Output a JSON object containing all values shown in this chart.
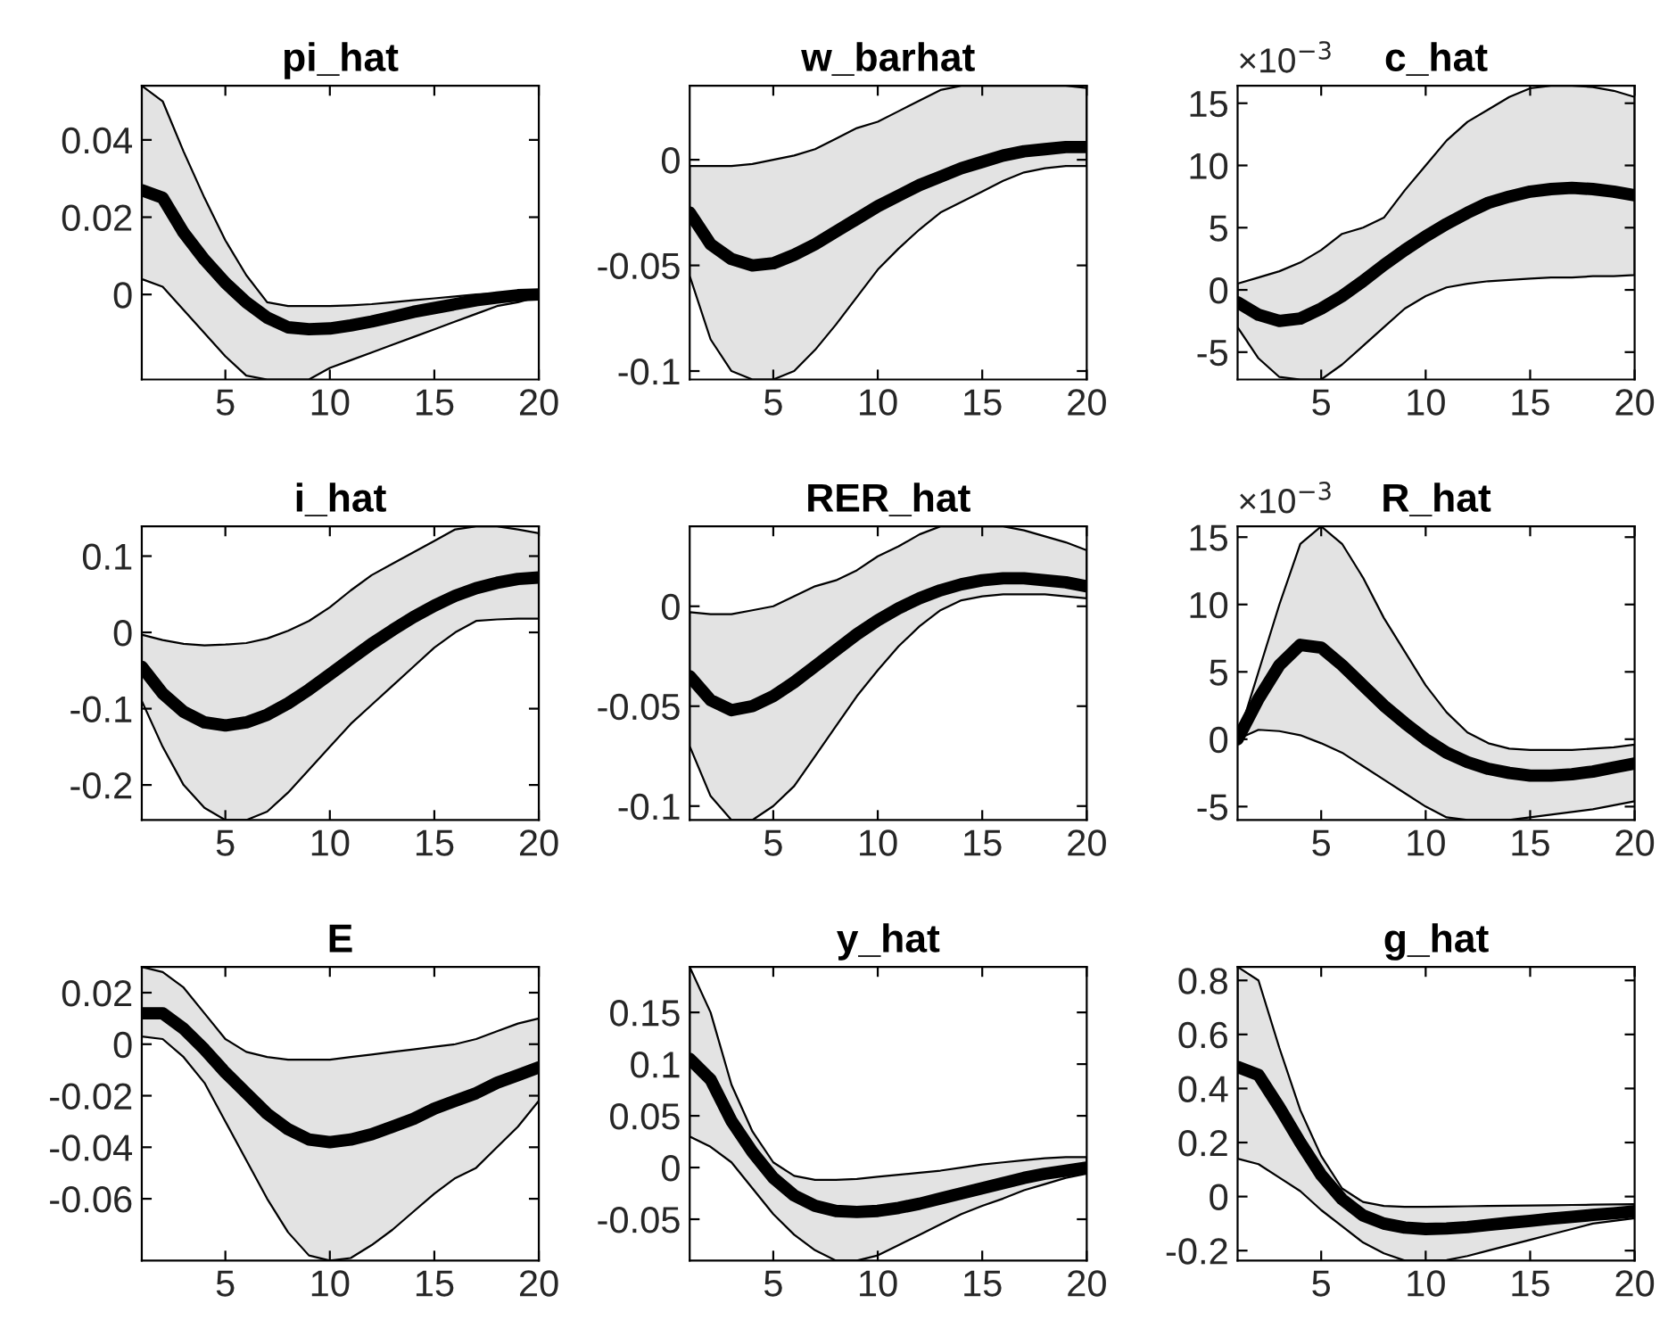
{
  "chart_data": [
    {
      "type": "line",
      "title": "pi_hat",
      "x": [
        1,
        2,
        3,
        4,
        5,
        6,
        7,
        8,
        9,
        10,
        11,
        12,
        13,
        14,
        15,
        16,
        17,
        18,
        19,
        20
      ],
      "xlim": [
        1,
        20
      ],
      "xticks": [
        5,
        10,
        15,
        20
      ],
      "ylim": [
        -0.022,
        0.054
      ],
      "yticks": [
        0,
        0.02,
        0.04
      ],
      "series": [
        {
          "color": "#000000",
          "values": [
            0.027,
            0.025,
            0.016,
            0.009,
            0.003,
            -0.002,
            -0.006,
            -0.0085,
            -0.009,
            -0.0088,
            -0.008,
            -0.007,
            -0.0058,
            -0.0045,
            -0.0035,
            -0.0025,
            -0.0015,
            -0.0008,
            -0.0002,
            0
          ],
          "upper": [
            0.054,
            0.05,
            0.037,
            0.025,
            0.014,
            0.005,
            -0.002,
            -0.003,
            -0.003,
            -0.003,
            -0.0028,
            -0.0025,
            -0.002,
            -0.0015,
            -0.001,
            -0.0005,
            0,
            0.0003,
            0.0005,
            0.0005
          ],
          "lower": [
            0.004,
            0.002,
            -0.004,
            -0.01,
            -0.016,
            -0.021,
            -0.022,
            -0.022,
            -0.022,
            -0.019,
            -0.017,
            -0.015,
            -0.013,
            -0.011,
            -0.009,
            -0.007,
            -0.005,
            -0.003,
            -0.002,
            -0.0005
          ]
        }
      ]
    },
    {
      "type": "line",
      "title": "w_barhat",
      "x": [
        1,
        2,
        3,
        4,
        5,
        6,
        7,
        8,
        9,
        10,
        11,
        12,
        13,
        14,
        15,
        16,
        17,
        18,
        19,
        20
      ],
      "xlim": [
        1,
        20
      ],
      "xticks": [
        5,
        10,
        15,
        20
      ],
      "ylim": [
        -0.104,
        0.035
      ],
      "yticks": [
        -0.1,
        -0.05,
        0
      ],
      "series": [
        {
          "color": "#000000",
          "values": [
            -0.025,
            -0.04,
            -0.047,
            -0.05,
            -0.049,
            -0.045,
            -0.04,
            -0.034,
            -0.028,
            -0.022,
            -0.017,
            -0.012,
            -0.008,
            -0.004,
            -0.001,
            0.002,
            0.004,
            0.005,
            0.006,
            0.006
          ],
          "upper": [
            -0.003,
            -0.003,
            -0.003,
            -0.002,
            0,
            0.002,
            0.005,
            0.01,
            0.015,
            0.018,
            0.023,
            0.028,
            0.033,
            0.035,
            0.035,
            0.035,
            0.035,
            0.035,
            0.035,
            0.034
          ],
          "lower": [
            -0.055,
            -0.085,
            -0.1,
            -0.104,
            -0.104,
            -0.1,
            -0.09,
            -0.078,
            -0.065,
            -0.052,
            -0.042,
            -0.033,
            -0.025,
            -0.02,
            -0.015,
            -0.01,
            -0.006,
            -0.004,
            -0.003,
            -0.003
          ]
        }
      ]
    },
    {
      "type": "line",
      "title": "c_hat",
      "annotations": [
        "×10$^{−3}$"
      ],
      "x": [
        1,
        2,
        3,
        4,
        5,
        6,
        7,
        8,
        9,
        10,
        11,
        12,
        13,
        14,
        15,
        16,
        17,
        18,
        19,
        20
      ],
      "xlim": [
        1,
        20
      ],
      "xticks": [
        5,
        10,
        15,
        20
      ],
      "ylim": [
        -7.2,
        16.4
      ],
      "yticks": [
        -5,
        0,
        5,
        10,
        15
      ],
      "series": [
        {
          "color": "#000000",
          "values": [
            -1,
            -2,
            -2.5,
            -2.3,
            -1.5,
            -0.5,
            0.7,
            2,
            3.2,
            4.3,
            5.3,
            6.2,
            7,
            7.5,
            7.9,
            8.1,
            8.2,
            8.1,
            7.9,
            7.6
          ],
          "upper": [
            0.5,
            1,
            1.5,
            2.2,
            3.2,
            4.5,
            5,
            5.8,
            8,
            10,
            12,
            13.5,
            14.5,
            15.5,
            16.2,
            16.4,
            16.4,
            16.3,
            16,
            15.5
          ],
          "lower": [
            -3,
            -5.5,
            -7,
            -7.2,
            -7.2,
            -6,
            -4.5,
            -3,
            -1.5,
            -0.5,
            0.2,
            0.5,
            0.7,
            0.8,
            0.9,
            1,
            1,
            1.1,
            1.1,
            1.2
          ]
        }
      ]
    },
    {
      "type": "line",
      "title": "i_hat",
      "x": [
        1,
        2,
        3,
        4,
        5,
        6,
        7,
        8,
        9,
        10,
        11,
        12,
        13,
        14,
        15,
        16,
        17,
        18,
        19,
        20
      ],
      "xlim": [
        1,
        20
      ],
      "xticks": [
        5,
        10,
        15,
        20
      ],
      "ylim": [
        -0.246,
        0.139
      ],
      "yticks": [
        -0.2,
        -0.1,
        0,
        0.1
      ],
      "series": [
        {
          "color": "#000000",
          "values": [
            -0.045,
            -0.08,
            -0.104,
            -0.118,
            -0.122,
            -0.118,
            -0.108,
            -0.093,
            -0.075,
            -0.055,
            -0.035,
            -0.015,
            0.003,
            0.02,
            0.035,
            0.048,
            0.058,
            0.065,
            0.07,
            0.072
          ],
          "upper": [
            -0.003,
            -0.01,
            -0.015,
            -0.017,
            -0.016,
            -0.014,
            -0.008,
            0.002,
            0.015,
            0.033,
            0.055,
            0.075,
            0.09,
            0.105,
            0.12,
            0.135,
            0.139,
            0.139,
            0.135,
            0.13
          ],
          "lower": [
            -0.09,
            -0.15,
            -0.2,
            -0.23,
            -0.246,
            -0.246,
            -0.235,
            -0.21,
            -0.18,
            -0.15,
            -0.12,
            -0.095,
            -0.07,
            -0.045,
            -0.02,
            0,
            0.015,
            0.017,
            0.018,
            0.018
          ]
        }
      ]
    },
    {
      "type": "line",
      "title": "RER_hat",
      "x": [
        1,
        2,
        3,
        4,
        5,
        6,
        7,
        8,
        9,
        10,
        11,
        12,
        13,
        14,
        15,
        16,
        17,
        18,
        19,
        20
      ],
      "xlim": [
        1,
        20
      ],
      "xticks": [
        5,
        10,
        15,
        20
      ],
      "ylim": [
        -0.107,
        0.04
      ],
      "yticks": [
        -0.1,
        -0.05,
        0
      ],
      "series": [
        {
          "color": "#000000",
          "values": [
            -0.035,
            -0.047,
            -0.052,
            -0.05,
            -0.045,
            -0.038,
            -0.03,
            -0.022,
            -0.014,
            -0.007,
            -0.001,
            0.004,
            0.008,
            0.011,
            0.013,
            0.014,
            0.014,
            0.013,
            0.012,
            0.01
          ],
          "upper": [
            -0.003,
            -0.004,
            -0.004,
            -0.002,
            0,
            0.005,
            0.01,
            0.013,
            0.018,
            0.025,
            0.03,
            0.036,
            0.04,
            0.04,
            0.04,
            0.04,
            0.038,
            0.035,
            0.032,
            0.028
          ],
          "lower": [
            -0.07,
            -0.095,
            -0.107,
            -0.107,
            -0.1,
            -0.09,
            -0.075,
            -0.06,
            -0.045,
            -0.032,
            -0.02,
            -0.01,
            -0.002,
            0.003,
            0.005,
            0.006,
            0.006,
            0.006,
            0.005,
            0.004
          ]
        }
      ]
    },
    {
      "type": "line",
      "title": "R_hat",
      "annotations": [
        "×10$^{−3}$"
      ],
      "x": [
        1,
        2,
        3,
        4,
        5,
        6,
        7,
        8,
        9,
        10,
        11,
        12,
        13,
        14,
        15,
        16,
        17,
        18,
        19,
        20
      ],
      "xlim": [
        1,
        20
      ],
      "xticks": [
        5,
        10,
        15,
        20
      ],
      "ylim": [
        -6,
        15.8
      ],
      "yticks": [
        -5,
        0,
        5,
        10,
        15
      ],
      "series": [
        {
          "color": "#000000",
          "values": [
            0,
            3,
            5.5,
            7,
            6.8,
            5.5,
            4,
            2.5,
            1.2,
            0,
            -1,
            -1.7,
            -2.2,
            -2.5,
            -2.7,
            -2.7,
            -2.6,
            -2.4,
            -2.1,
            -1.8
          ],
          "upper": [
            0,
            5,
            10,
            14.5,
            15.8,
            14.5,
            12,
            9,
            6.5,
            4,
            2,
            0.5,
            -0.3,
            -0.7,
            -0.8,
            -0.8,
            -0.8,
            -0.7,
            -0.6,
            -0.4
          ],
          "lower": [
            0,
            0.7,
            0.6,
            0.3,
            -0.3,
            -1,
            -2,
            -3,
            -4,
            -5,
            -5.8,
            -6,
            -6,
            -6,
            -5.8,
            -5.6,
            -5.4,
            -5.2,
            -4.9,
            -4.6
          ]
        }
      ]
    },
    {
      "type": "line",
      "title": "E",
      "x": [
        1,
        2,
        3,
        4,
        5,
        6,
        7,
        8,
        9,
        10,
        11,
        12,
        13,
        14,
        15,
        16,
        17,
        18,
        19,
        20
      ],
      "xlim": [
        1,
        20
      ],
      "xticks": [
        5,
        10,
        15,
        20
      ],
      "ylim": [
        -0.084,
        0.03
      ],
      "yticks": [
        -0.06,
        -0.04,
        -0.02,
        0,
        0.02
      ],
      "series": [
        {
          "color": "#000000",
          "values": [
            0.012,
            0.012,
            0.006,
            -0.002,
            -0.011,
            -0.019,
            -0.027,
            -0.033,
            -0.037,
            -0.038,
            -0.037,
            -0.035,
            -0.032,
            -0.029,
            -0.025,
            -0.022,
            -0.019,
            -0.015,
            -0.012,
            -0.009
          ],
          "upper": [
            0.03,
            0.028,
            0.022,
            0.012,
            0.002,
            -0.003,
            -0.005,
            -0.006,
            -0.006,
            -0.006,
            -0.005,
            -0.004,
            -0.003,
            -0.002,
            -0.001,
            0,
            0.002,
            0.005,
            0.008,
            0.01
          ],
          "lower": [
            0.003,
            0.002,
            -0.005,
            -0.015,
            -0.03,
            -0.045,
            -0.06,
            -0.073,
            -0.082,
            -0.084,
            -0.083,
            -0.078,
            -0.072,
            -0.065,
            -0.058,
            -0.052,
            -0.048,
            -0.04,
            -0.032,
            -0.022
          ]
        }
      ]
    },
    {
      "type": "line",
      "title": "y_hat",
      "x": [
        1,
        2,
        3,
        4,
        5,
        6,
        7,
        8,
        9,
        10,
        11,
        12,
        13,
        14,
        15,
        16,
        17,
        18,
        19,
        20
      ],
      "xlim": [
        1,
        20
      ],
      "xticks": [
        5,
        10,
        15,
        20
      ],
      "ylim": [
        -0.09,
        0.194
      ],
      "yticks": [
        -0.05,
        0,
        0.05,
        0.1,
        0.15
      ],
      "series": [
        {
          "color": "#000000",
          "values": [
            0.105,
            0.085,
            0.045,
            0.015,
            -0.01,
            -0.027,
            -0.037,
            -0.042,
            -0.043,
            -0.042,
            -0.039,
            -0.035,
            -0.03,
            -0.025,
            -0.02,
            -0.015,
            -0.01,
            -0.006,
            -0.003,
            0
          ],
          "upper": [
            0.194,
            0.15,
            0.08,
            0.035,
            0.005,
            -0.008,
            -0.012,
            -0.012,
            -0.011,
            -0.009,
            -0.007,
            -0.005,
            -0.003,
            0,
            0.003,
            0.005,
            0.007,
            0.009,
            0.01,
            0.01
          ],
          "lower": [
            0.03,
            0.02,
            0.005,
            -0.02,
            -0.045,
            -0.065,
            -0.08,
            -0.09,
            -0.09,
            -0.085,
            -0.075,
            -0.065,
            -0.055,
            -0.045,
            -0.037,
            -0.03,
            -0.022,
            -0.016,
            -0.01,
            -0.006
          ]
        }
      ]
    },
    {
      "type": "line",
      "title": "g_hat",
      "x": [
        1,
        2,
        3,
        4,
        5,
        6,
        7,
        8,
        9,
        10,
        11,
        12,
        13,
        14,
        15,
        16,
        17,
        18,
        19,
        20
      ],
      "xlim": [
        1,
        20
      ],
      "xticks": [
        5,
        10,
        15,
        20
      ],
      "ylim": [
        -0.237,
        0.85
      ],
      "yticks": [
        -0.2,
        0,
        0.2,
        0.4,
        0.6,
        0.8
      ],
      "series": [
        {
          "color": "#000000",
          "values": [
            0.48,
            0.45,
            0.33,
            0.2,
            0.08,
            -0.01,
            -0.07,
            -0.1,
            -0.115,
            -0.12,
            -0.118,
            -0.113,
            -0.105,
            -0.097,
            -0.09,
            -0.082,
            -0.075,
            -0.068,
            -0.062,
            -0.055
          ],
          "upper": [
            0.85,
            0.8,
            0.55,
            0.32,
            0.15,
            0.03,
            -0.02,
            -0.035,
            -0.038,
            -0.038,
            -0.037,
            -0.036,
            -0.035,
            -0.034,
            -0.033,
            -0.032,
            -0.031,
            -0.03,
            -0.029,
            -0.028
          ],
          "lower": [
            0.14,
            0.12,
            0.07,
            0.02,
            -0.05,
            -0.11,
            -0.17,
            -0.21,
            -0.237,
            -0.237,
            -0.235,
            -0.22,
            -0.2,
            -0.18,
            -0.16,
            -0.14,
            -0.12,
            -0.1,
            -0.09,
            -0.08
          ]
        }
      ]
    }
  ]
}
